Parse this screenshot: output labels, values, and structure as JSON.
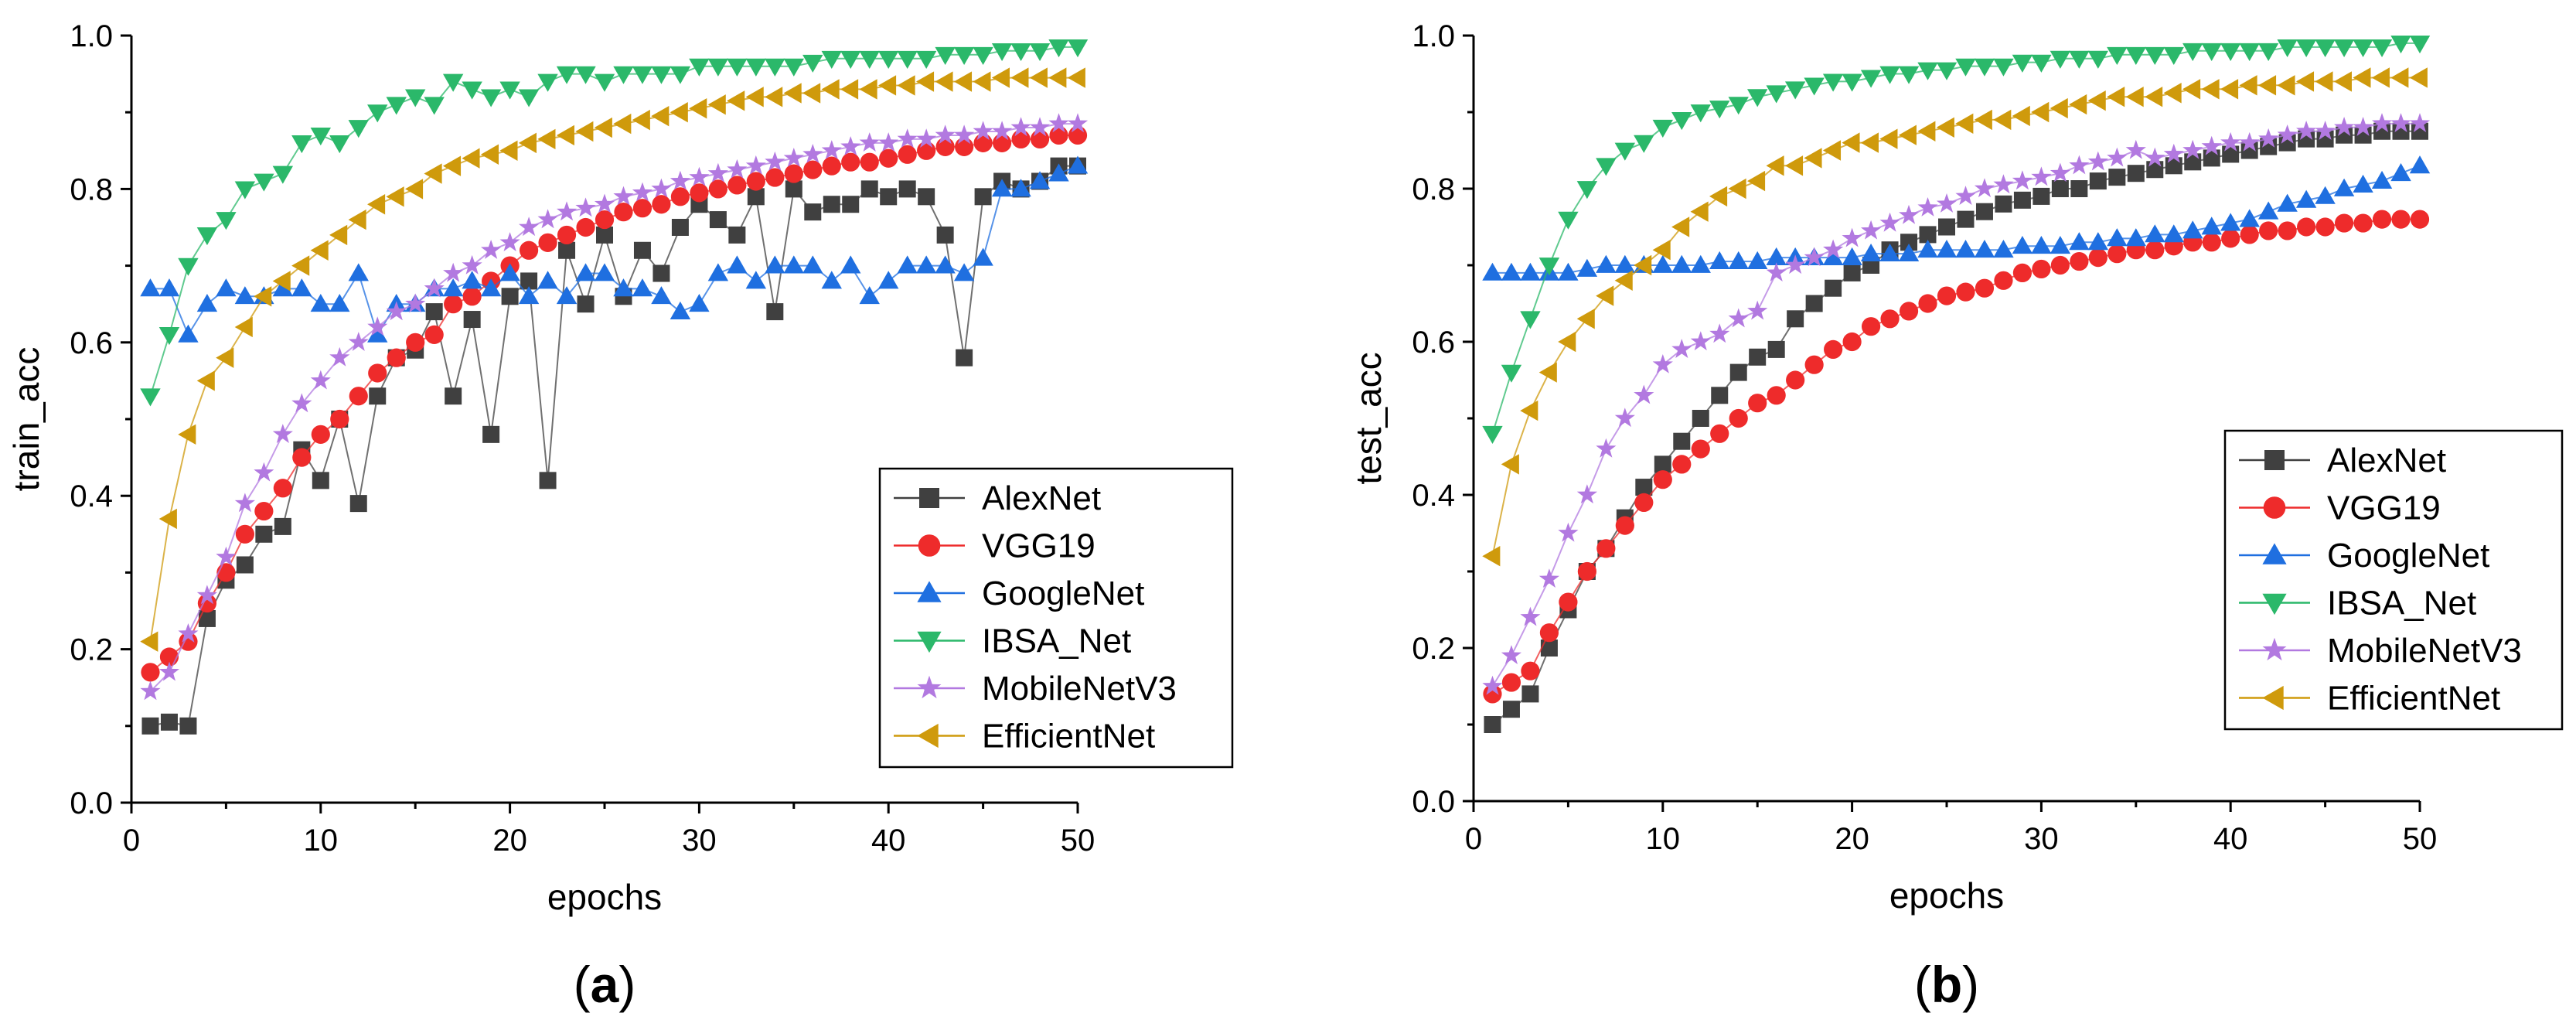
{
  "colors": {
    "AlexNet": "#404040",
    "VGG19": "#ee2b2b",
    "GoogleNet": "#1f6fe0",
    "IBSA_Net": "#2bb86a",
    "MobileNetV3": "#b279e0",
    "EfficientNet": "#cf9a0c"
  },
  "markers": {
    "AlexNet": "square",
    "VGG19": "circle",
    "GoogleNet": "triangle-up",
    "IBSA_Net": "triangle-down",
    "MobileNetV3": "star",
    "EfficientNet": "triangle-left"
  },
  "chart_data": [
    {
      "type": "line",
      "caption_letter": "a",
      "xlabel": "epochs",
      "ylabel": "train_acc",
      "xlim": [
        0,
        50
      ],
      "ylim": [
        0.0,
        1.0
      ],
      "xticks": [
        "0",
        "10",
        "20",
        "30",
        "40",
        "50"
      ],
      "yticks": [
        "0.0",
        "0.2",
        "0.4",
        "0.6",
        "0.8",
        "1.0"
      ],
      "legend_position": "bottom-right",
      "x": [
        1,
        2,
        3,
        4,
        5,
        6,
        7,
        8,
        9,
        10,
        11,
        12,
        13,
        14,
        15,
        16,
        17,
        18,
        19,
        20,
        21,
        22,
        23,
        24,
        25,
        26,
        27,
        28,
        29,
        30,
        31,
        32,
        33,
        34,
        35,
        36,
        37,
        38,
        39,
        40,
        41,
        42,
        43,
        44,
        45,
        46,
        47,
        48,
        49,
        50
      ],
      "series": [
        {
          "name": "AlexNet",
          "values": [
            0.1,
            0.105,
            0.1,
            0.24,
            0.29,
            0.31,
            0.35,
            0.36,
            0.46,
            0.42,
            0.5,
            0.39,
            0.53,
            0.58,
            0.59,
            0.64,
            0.53,
            0.63,
            0.48,
            0.66,
            0.68,
            0.42,
            0.72,
            0.65,
            0.74,
            0.66,
            0.72,
            0.69,
            0.75,
            0.78,
            0.76,
            0.74,
            0.79,
            0.64,
            0.8,
            0.77,
            0.78,
            0.78,
            0.8,
            0.79,
            0.8,
            0.79,
            0.74,
            0.58,
            0.79,
            0.81,
            0.8,
            0.81,
            0.83,
            0.83
          ]
        },
        {
          "name": "VGG19",
          "values": [
            0.17,
            0.19,
            0.21,
            0.26,
            0.3,
            0.35,
            0.38,
            0.41,
            0.45,
            0.48,
            0.5,
            0.53,
            0.56,
            0.58,
            0.6,
            0.61,
            0.65,
            0.66,
            0.68,
            0.7,
            0.72,
            0.73,
            0.74,
            0.75,
            0.76,
            0.77,
            0.775,
            0.78,
            0.79,
            0.795,
            0.8,
            0.805,
            0.81,
            0.815,
            0.82,
            0.825,
            0.83,
            0.835,
            0.835,
            0.84,
            0.845,
            0.85,
            0.855,
            0.855,
            0.86,
            0.86,
            0.865,
            0.865,
            0.87,
            0.87
          ]
        },
        {
          "name": "GoogleNet",
          "values": [
            0.67,
            0.67,
            0.61,
            0.65,
            0.67,
            0.66,
            0.66,
            0.67,
            0.67,
            0.65,
            0.65,
            0.69,
            0.61,
            0.65,
            0.65,
            0.67,
            0.67,
            0.68,
            0.67,
            0.69,
            0.66,
            0.68,
            0.66,
            0.69,
            0.69,
            0.67,
            0.67,
            0.66,
            0.64,
            0.65,
            0.69,
            0.7,
            0.68,
            0.7,
            0.7,
            0.7,
            0.68,
            0.7,
            0.66,
            0.68,
            0.7,
            0.7,
            0.7,
            0.69,
            0.71,
            0.8,
            0.8,
            0.81,
            0.82,
            0.83
          ]
        },
        {
          "name": "IBSA_Net",
          "values": [
            0.53,
            0.61,
            0.7,
            0.74,
            0.76,
            0.8,
            0.81,
            0.82,
            0.86,
            0.87,
            0.86,
            0.88,
            0.9,
            0.91,
            0.92,
            0.91,
            0.94,
            0.93,
            0.92,
            0.93,
            0.92,
            0.94,
            0.95,
            0.95,
            0.94,
            0.95,
            0.95,
            0.95,
            0.95,
            0.96,
            0.96,
            0.96,
            0.96,
            0.96,
            0.96,
            0.965,
            0.97,
            0.97,
            0.97,
            0.97,
            0.97,
            0.97,
            0.975,
            0.975,
            0.975,
            0.98,
            0.98,
            0.98,
            0.985,
            0.985
          ]
        },
        {
          "name": "MobileNetV3",
          "values": [
            0.145,
            0.17,
            0.22,
            0.27,
            0.32,
            0.39,
            0.43,
            0.48,
            0.52,
            0.55,
            0.58,
            0.6,
            0.62,
            0.64,
            0.65,
            0.67,
            0.69,
            0.7,
            0.72,
            0.73,
            0.75,
            0.76,
            0.77,
            0.775,
            0.78,
            0.79,
            0.795,
            0.8,
            0.81,
            0.815,
            0.82,
            0.825,
            0.83,
            0.835,
            0.84,
            0.845,
            0.85,
            0.855,
            0.86,
            0.86,
            0.865,
            0.865,
            0.87,
            0.87,
            0.875,
            0.875,
            0.88,
            0.88,
            0.885,
            0.885
          ]
        },
        {
          "name": "EfficientNet",
          "values": [
            0.21,
            0.37,
            0.48,
            0.55,
            0.58,
            0.62,
            0.66,
            0.68,
            0.7,
            0.72,
            0.74,
            0.76,
            0.78,
            0.79,
            0.8,
            0.82,
            0.83,
            0.84,
            0.845,
            0.85,
            0.86,
            0.865,
            0.87,
            0.875,
            0.88,
            0.885,
            0.89,
            0.895,
            0.9,
            0.905,
            0.91,
            0.915,
            0.92,
            0.92,
            0.925,
            0.925,
            0.93,
            0.93,
            0.93,
            0.935,
            0.935,
            0.94,
            0.94,
            0.94,
            0.94,
            0.945,
            0.945,
            0.945,
            0.945,
            0.945
          ]
        }
      ]
    },
    {
      "type": "line",
      "caption_letter": "b",
      "xlabel": "epochs",
      "ylabel": "test_acc",
      "xlim": [
        0,
        50
      ],
      "ylim": [
        0.0,
        1.0
      ],
      "xticks": [
        "0",
        "10",
        "20",
        "30",
        "40",
        "50"
      ],
      "yticks": [
        "0.0",
        "0.2",
        "0.4",
        "0.6",
        "0.8",
        "1.0"
      ],
      "legend_position": "bottom-right",
      "x": [
        1,
        2,
        3,
        4,
        5,
        6,
        7,
        8,
        9,
        10,
        11,
        12,
        13,
        14,
        15,
        16,
        17,
        18,
        19,
        20,
        21,
        22,
        23,
        24,
        25,
        26,
        27,
        28,
        29,
        30,
        31,
        32,
        33,
        34,
        35,
        36,
        37,
        38,
        39,
        40,
        41,
        42,
        43,
        44,
        45,
        46,
        47,
        48,
        49,
        50
      ],
      "series": [
        {
          "name": "AlexNet",
          "values": [
            0.1,
            0.12,
            0.14,
            0.2,
            0.25,
            0.3,
            0.33,
            0.37,
            0.41,
            0.44,
            0.47,
            0.5,
            0.53,
            0.56,
            0.58,
            0.59,
            0.63,
            0.65,
            0.67,
            0.69,
            0.7,
            0.72,
            0.73,
            0.74,
            0.75,
            0.76,
            0.77,
            0.78,
            0.785,
            0.79,
            0.8,
            0.8,
            0.81,
            0.815,
            0.82,
            0.825,
            0.83,
            0.835,
            0.84,
            0.845,
            0.85,
            0.855,
            0.86,
            0.865,
            0.865,
            0.87,
            0.87,
            0.875,
            0.875,
            0.875
          ]
        },
        {
          "name": "VGG19",
          "values": [
            0.14,
            0.155,
            0.17,
            0.22,
            0.26,
            0.3,
            0.33,
            0.36,
            0.39,
            0.42,
            0.44,
            0.46,
            0.48,
            0.5,
            0.52,
            0.53,
            0.55,
            0.57,
            0.59,
            0.6,
            0.62,
            0.63,
            0.64,
            0.65,
            0.66,
            0.665,
            0.67,
            0.68,
            0.69,
            0.695,
            0.7,
            0.705,
            0.71,
            0.715,
            0.72,
            0.72,
            0.725,
            0.73,
            0.73,
            0.735,
            0.74,
            0.745,
            0.745,
            0.75,
            0.75,
            0.755,
            0.755,
            0.76,
            0.76,
            0.76
          ]
        },
        {
          "name": "GoogleNet",
          "values": [
            0.69,
            0.69,
            0.69,
            0.69,
            0.69,
            0.695,
            0.7,
            0.7,
            0.7,
            0.7,
            0.7,
            0.7,
            0.705,
            0.705,
            0.705,
            0.71,
            0.71,
            0.71,
            0.71,
            0.71,
            0.715,
            0.715,
            0.715,
            0.72,
            0.72,
            0.72,
            0.72,
            0.72,
            0.725,
            0.725,
            0.725,
            0.73,
            0.73,
            0.735,
            0.735,
            0.74,
            0.74,
            0.745,
            0.75,
            0.755,
            0.76,
            0.77,
            0.78,
            0.785,
            0.79,
            0.8,
            0.805,
            0.81,
            0.82,
            0.83
          ]
        },
        {
          "name": "IBSA_Net",
          "values": [
            0.48,
            0.56,
            0.63,
            0.7,
            0.76,
            0.8,
            0.83,
            0.85,
            0.86,
            0.88,
            0.89,
            0.9,
            0.905,
            0.91,
            0.92,
            0.925,
            0.93,
            0.935,
            0.94,
            0.94,
            0.945,
            0.95,
            0.95,
            0.955,
            0.955,
            0.96,
            0.96,
            0.96,
            0.965,
            0.965,
            0.97,
            0.97,
            0.97,
            0.975,
            0.975,
            0.975,
            0.975,
            0.98,
            0.98,
            0.98,
            0.98,
            0.98,
            0.985,
            0.985,
            0.985,
            0.985,
            0.985,
            0.985,
            0.99,
            0.99
          ]
        },
        {
          "name": "MobileNetV3",
          "values": [
            0.15,
            0.19,
            0.24,
            0.29,
            0.35,
            0.4,
            0.46,
            0.5,
            0.53,
            0.57,
            0.59,
            0.6,
            0.61,
            0.63,
            0.64,
            0.69,
            0.7,
            0.71,
            0.72,
            0.735,
            0.745,
            0.755,
            0.765,
            0.775,
            0.78,
            0.79,
            0.8,
            0.805,
            0.81,
            0.815,
            0.82,
            0.83,
            0.835,
            0.84,
            0.85,
            0.84,
            0.845,
            0.85,
            0.855,
            0.86,
            0.86,
            0.865,
            0.87,
            0.875,
            0.875,
            0.88,
            0.88,
            0.885,
            0.885,
            0.885
          ]
        },
        {
          "name": "EfficientNet",
          "values": [
            0.32,
            0.44,
            0.51,
            0.56,
            0.6,
            0.63,
            0.66,
            0.68,
            0.7,
            0.72,
            0.75,
            0.77,
            0.79,
            0.8,
            0.81,
            0.83,
            0.83,
            0.84,
            0.85,
            0.86,
            0.86,
            0.865,
            0.87,
            0.875,
            0.88,
            0.885,
            0.89,
            0.89,
            0.895,
            0.9,
            0.905,
            0.91,
            0.915,
            0.92,
            0.92,
            0.92,
            0.925,
            0.93,
            0.93,
            0.93,
            0.935,
            0.935,
            0.935,
            0.94,
            0.94,
            0.94,
            0.945,
            0.945,
            0.945,
            0.945
          ]
        }
      ]
    }
  ]
}
